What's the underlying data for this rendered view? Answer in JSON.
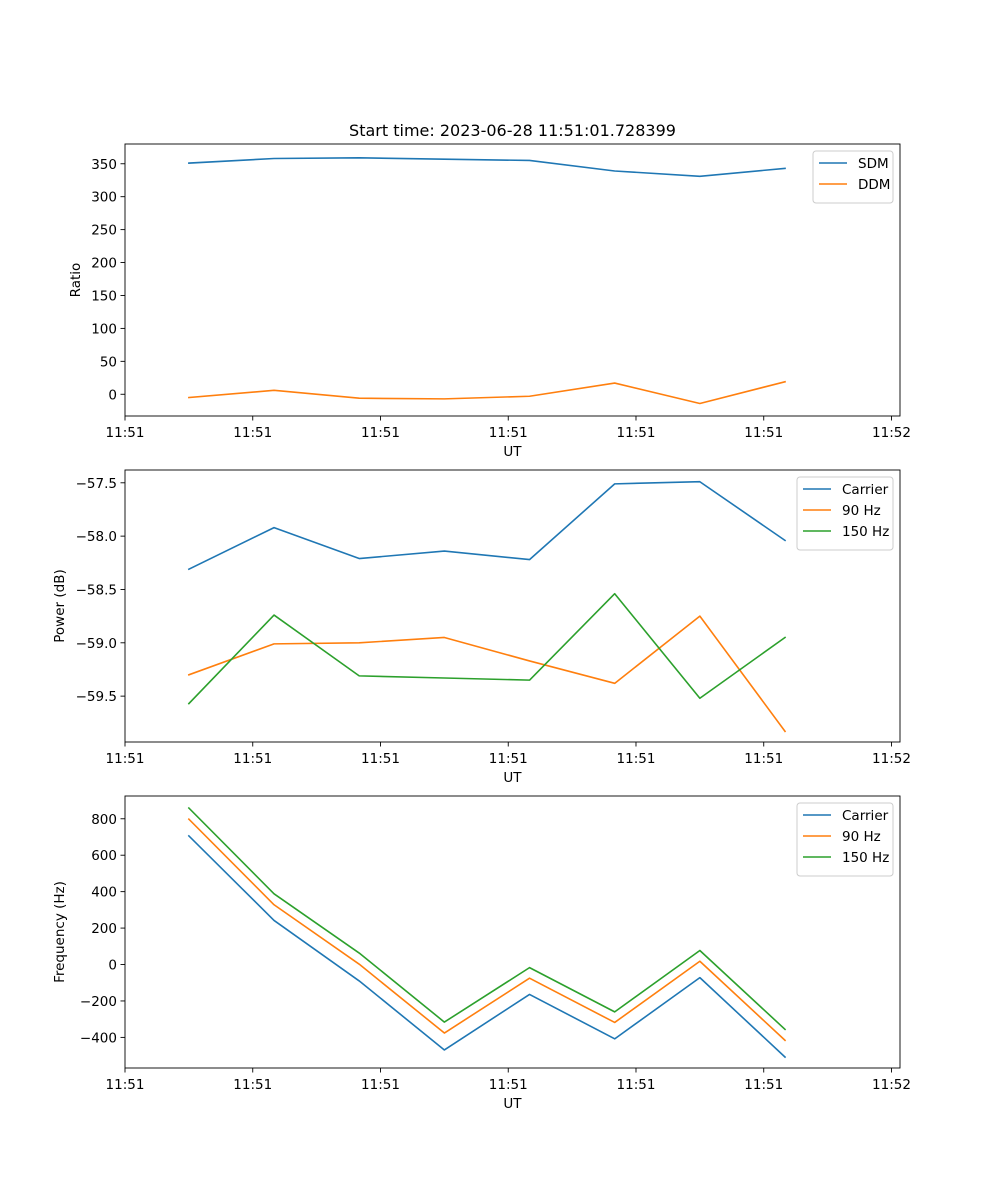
{
  "chart_data": [
    {
      "type": "line",
      "title": "Start time: 2023-06-28 11:51:01.728399",
      "xlabel": "UT",
      "ylabel": "Ratio",
      "xlim": [
        0,
        9.1
      ],
      "ylim": [
        -33,
        380
      ],
      "x": [
        0.75,
        1.75,
        2.75,
        3.75,
        4.75,
        5.75,
        6.75,
        7.75
      ],
      "xticks": [
        0.0,
        1.5,
        3.0,
        4.5,
        6.0,
        7.5,
        9.0
      ],
      "xtick_labels": [
        "11:51",
        "11:51",
        "11:51",
        "11:51",
        "11:51",
        "11:51",
        "11:52"
      ],
      "yticks": [
        0,
        50,
        100,
        150,
        200,
        250,
        300,
        350
      ],
      "ytick_labels": [
        "0",
        "50",
        "100",
        "150",
        "200",
        "250",
        "300",
        "350"
      ],
      "grid": false,
      "legend": "top-right",
      "series": [
        {
          "name": "SDM",
          "color": "#1f77b4",
          "values": [
            351,
            358,
            359,
            357,
            355,
            339,
            331,
            343
          ]
        },
        {
          "name": "DDM",
          "color": "#ff7f0e",
          "values": [
            -5,
            6,
            -6,
            -7,
            -3,
            17,
            -14,
            19
          ]
        }
      ]
    },
    {
      "type": "line",
      "title": "",
      "xlabel": "UT",
      "ylabel": "Power (dB)",
      "xlim": [
        0,
        9.1
      ],
      "ylim": [
        -59.93,
        -57.38
      ],
      "x": [
        0.75,
        1.75,
        2.75,
        3.75,
        4.75,
        5.75,
        6.75,
        7.75
      ],
      "xticks": [
        0.0,
        1.5,
        3.0,
        4.5,
        6.0,
        7.5,
        9.0
      ],
      "xtick_labels": [
        "11:51",
        "11:51",
        "11:51",
        "11:51",
        "11:51",
        "11:51",
        "11:52"
      ],
      "yticks": [
        -59.5,
        -59.0,
        -58.5,
        -58.0,
        -57.5
      ],
      "ytick_labels": [
        "−59.5",
        "−59.0",
        "−58.5",
        "−58.0",
        "−57.5"
      ],
      "grid": false,
      "legend": "top-right",
      "series": [
        {
          "name": "Carrier",
          "color": "#1f77b4",
          "values": [
            -58.31,
            -57.92,
            -58.21,
            -58.14,
            -58.22,
            -57.51,
            -57.49,
            -58.04
          ]
        },
        {
          "name": "90 Hz",
          "color": "#ff7f0e",
          "values": [
            -59.3,
            -59.01,
            -59.0,
            -58.95,
            -59.17,
            -59.38,
            -58.75,
            -59.83
          ]
        },
        {
          "name": "150 Hz",
          "color": "#2ca02c",
          "values": [
            -59.57,
            -58.74,
            -59.31,
            -59.33,
            -59.35,
            -58.54,
            -59.52,
            -58.95
          ]
        }
      ]
    },
    {
      "type": "line",
      "title": "",
      "xlabel": "UT",
      "ylabel": "Frequency (Hz)",
      "xlim": [
        0,
        9.1
      ],
      "ylim": [
        -568,
        925
      ],
      "x": [
        0.75,
        1.75,
        2.75,
        3.75,
        4.75,
        5.75,
        6.75,
        7.75
      ],
      "xticks": [
        0.0,
        1.5,
        3.0,
        4.5,
        6.0,
        7.5,
        9.0
      ],
      "xtick_labels": [
        "11:51",
        "11:51",
        "11:51",
        "11:51",
        "11:51",
        "11:51",
        "11:52"
      ],
      "yticks": [
        -400,
        -200,
        0,
        200,
        400,
        600,
        800
      ],
      "ytick_labels": [
        "−400",
        "−200",
        "0",
        "200",
        "400",
        "600",
        "800"
      ],
      "grid": false,
      "legend": "top-right",
      "series": [
        {
          "name": "Carrier",
          "color": "#1f77b4",
          "values": [
            706,
            242,
            -90,
            -469,
            -164,
            -408,
            -72,
            -508
          ]
        },
        {
          "name": "90 Hz",
          "color": "#ff7f0e",
          "values": [
            798,
            328,
            2,
            -376,
            -75,
            -318,
            18,
            -416
          ]
        },
        {
          "name": "150 Hz",
          "color": "#2ca02c",
          "values": [
            859,
            388,
            63,
            -316,
            -17,
            -260,
            77,
            -356
          ]
        }
      ]
    }
  ]
}
